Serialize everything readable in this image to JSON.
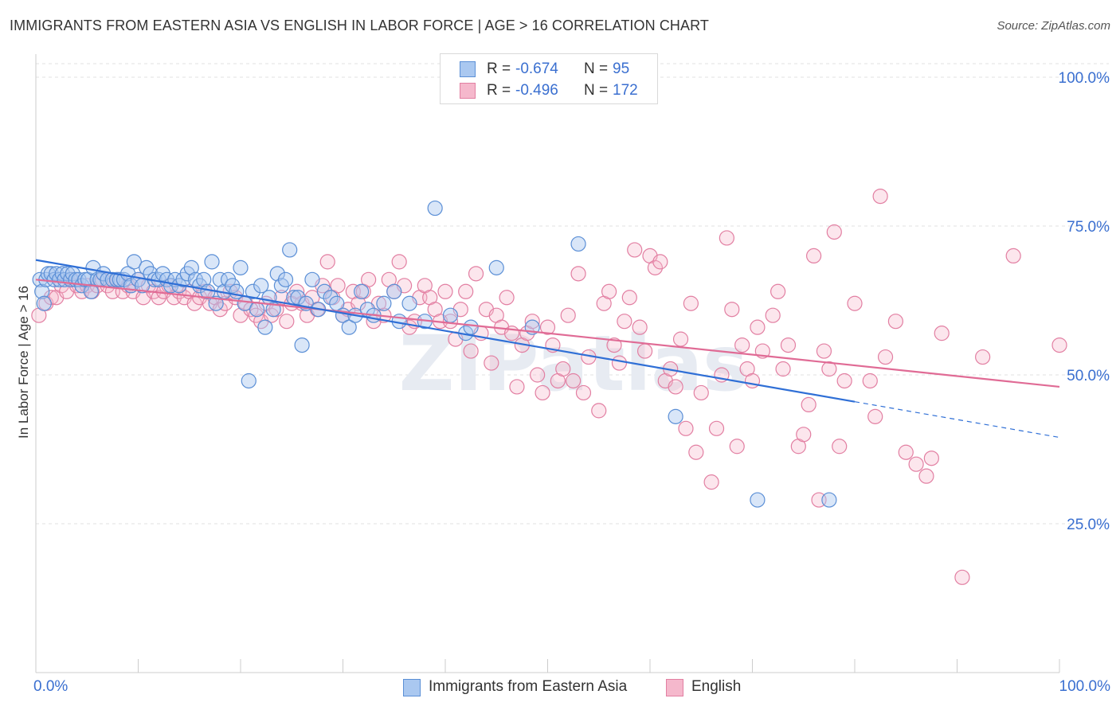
{
  "title": "IMMIGRANTS FROM EASTERN ASIA VS ENGLISH IN LABOR FORCE | AGE > 16 CORRELATION CHART",
  "source": "Source: ZipAtlas.com",
  "watermark": "ZIPatlas",
  "legend_top": {
    "rows": [
      {
        "r_label": "R =",
        "r_value": "-0.674",
        "n_label": "N =",
        "n_value": "95",
        "fill": "#aac8f0",
        "stroke": "#5b8fd6"
      },
      {
        "r_label": "R =",
        "r_value": "-0.496",
        "n_label": "N =",
        "n_value": "172",
        "fill": "#f5b8cc",
        "stroke": "#e27fa2"
      }
    ]
  },
  "legend_bottom": [
    {
      "label": "Immigrants from Eastern Asia",
      "fill": "#aac8f0",
      "stroke": "#5b8fd6"
    },
    {
      "label": "English",
      "fill": "#f5b8cc",
      "stroke": "#e27fa2"
    }
  ],
  "chart_data": {
    "type": "scatter",
    "title": "IMMIGRANTS FROM EASTERN ASIA VS ENGLISH IN LABOR FORCE | AGE > 16 CORRELATION CHART",
    "xlabel": "",
    "ylabel": "In Labor Force | Age > 16",
    "xlim": [
      0,
      100
    ],
    "ylim": [
      0,
      100
    ],
    "x_tick_labels": [
      "0.0%",
      "100.0%"
    ],
    "y_ticks": [
      {
        "value": 100,
        "label": "100.0%"
      },
      {
        "value": 75,
        "label": "75.0%"
      },
      {
        "value": 50,
        "label": "50.0%"
      },
      {
        "value": 25,
        "label": "25.0%"
      }
    ],
    "grid": "horizontal dashed",
    "legend_position": "top-center",
    "colors": {
      "blue": "#5b8fd6",
      "blue_line": "#2f6fd6",
      "pink": "#e27fa2",
      "pink_line": "#e06b95",
      "tick_label": "#3a6fd0"
    },
    "series": [
      {
        "name": "Immigrants from Eastern Asia",
        "color": "#5b8fd6",
        "trend": {
          "x0": 0,
          "y0": 69.3,
          "x1": 80,
          "y1": 45.5,
          "dashed_to_x": 100,
          "dashed_to_y": 39.5
        },
        "points": [
          [
            0.4,
            66
          ],
          [
            0.6,
            64
          ],
          [
            0.8,
            62
          ],
          [
            1.0,
            66
          ],
          [
            1.2,
            67
          ],
          [
            1.5,
            67
          ],
          [
            1.8,
            66
          ],
          [
            2.0,
            67
          ],
          [
            2.3,
            66
          ],
          [
            2.6,
            67
          ],
          [
            2.8,
            66
          ],
          [
            3.1,
            67
          ],
          [
            3.4,
            66
          ],
          [
            3.6,
            67
          ],
          [
            3.9,
            66
          ],
          [
            4.2,
            66
          ],
          [
            4.5,
            65
          ],
          [
            4.8,
            66
          ],
          [
            5.1,
            66
          ],
          [
            5.4,
            64
          ],
          [
            5.6,
            68
          ],
          [
            6.0,
            66
          ],
          [
            6.3,
            66
          ],
          [
            6.6,
            67
          ],
          [
            7.0,
            66
          ],
          [
            7.5,
            66
          ],
          [
            7.9,
            66
          ],
          [
            8.2,
            66
          ],
          [
            8.6,
            66
          ],
          [
            9.0,
            67
          ],
          [
            9.3,
            65
          ],
          [
            9.6,
            69
          ],
          [
            10.0,
            66
          ],
          [
            10.4,
            65
          ],
          [
            10.8,
            68
          ],
          [
            11.2,
            67
          ],
          [
            11.6,
            66
          ],
          [
            12.0,
            66
          ],
          [
            12.4,
            67
          ],
          [
            12.8,
            66
          ],
          [
            13.2,
            65
          ],
          [
            13.6,
            66
          ],
          [
            14.0,
            65
          ],
          [
            14.4,
            66
          ],
          [
            14.8,
            67
          ],
          [
            15.2,
            68
          ],
          [
            15.6,
            66
          ],
          [
            16.0,
            65
          ],
          [
            16.4,
            66
          ],
          [
            16.8,
            64
          ],
          [
            17.2,
            69
          ],
          [
            17.6,
            62
          ],
          [
            18.0,
            66
          ],
          [
            18.4,
            64
          ],
          [
            18.8,
            66
          ],
          [
            19.2,
            65
          ],
          [
            19.6,
            64
          ],
          [
            20.0,
            68
          ],
          [
            20.4,
            62
          ],
          [
            20.8,
            49
          ],
          [
            21.2,
            64
          ],
          [
            21.6,
            61
          ],
          [
            22.0,
            65
          ],
          [
            22.4,
            58
          ],
          [
            22.8,
            63
          ],
          [
            23.2,
            61
          ],
          [
            23.6,
            67
          ],
          [
            24.0,
            65
          ],
          [
            24.4,
            66
          ],
          [
            24.8,
            71
          ],
          [
            25.2,
            63
          ],
          [
            25.6,
            63
          ],
          [
            26.0,
            55
          ],
          [
            26.4,
            62
          ],
          [
            27.0,
            66
          ],
          [
            27.6,
            61
          ],
          [
            28.2,
            64
          ],
          [
            28.8,
            63
          ],
          [
            29.4,
            62
          ],
          [
            30.0,
            60
          ],
          [
            30.6,
            58
          ],
          [
            31.2,
            60
          ],
          [
            31.8,
            64
          ],
          [
            32.4,
            61
          ],
          [
            33.0,
            60
          ],
          [
            34.0,
            62
          ],
          [
            35.0,
            64
          ],
          [
            35.5,
            59
          ],
          [
            36.5,
            62
          ],
          [
            38.0,
            59
          ],
          [
            39.0,
            78
          ],
          [
            40.5,
            60
          ],
          [
            42.0,
            57
          ],
          [
            42.5,
            58
          ],
          [
            45.0,
            68
          ],
          [
            48.5,
            58
          ],
          [
            53.0,
            72
          ],
          [
            62.5,
            43
          ],
          [
            70.5,
            29
          ],
          [
            77.5,
            29
          ]
        ]
      },
      {
        "name": "English",
        "color": "#e27fa2",
        "trend": {
          "x0": 0,
          "y0": 66.0,
          "x1": 100,
          "y1": 48.0
        },
        "points": [
          [
            0.3,
            60
          ],
          [
            1.0,
            62
          ],
          [
            1.5,
            63
          ],
          [
            2.0,
            63
          ],
          [
            2.5,
            65
          ],
          [
            3.0,
            64
          ],
          [
            3.5,
            66
          ],
          [
            4.0,
            65
          ],
          [
            4.5,
            64
          ],
          [
            5.0,
            65
          ],
          [
            5.5,
            64
          ],
          [
            6.0,
            65
          ],
          [
            6.5,
            66
          ],
          [
            7.0,
            65
          ],
          [
            7.5,
            64
          ],
          [
            8.0,
            66
          ],
          [
            8.5,
            64
          ],
          [
            9.0,
            65
          ],
          [
            9.5,
            64
          ],
          [
            10.0,
            66
          ],
          [
            10.5,
            63
          ],
          [
            11.0,
            65
          ],
          [
            11.5,
            64
          ],
          [
            12.0,
            63
          ],
          [
            12.5,
            64
          ],
          [
            13.0,
            65
          ],
          [
            13.5,
            63
          ],
          [
            14.0,
            64
          ],
          [
            14.5,
            63
          ],
          [
            15.0,
            64
          ],
          [
            15.5,
            62
          ],
          [
            16.0,
            63
          ],
          [
            16.5,
            64
          ],
          [
            17.0,
            62
          ],
          [
            17.5,
            63
          ],
          [
            18.0,
            61
          ],
          [
            18.5,
            62
          ],
          [
            19.0,
            64
          ],
          [
            19.5,
            63
          ],
          [
            20.0,
            60
          ],
          [
            20.5,
            62
          ],
          [
            21.0,
            61
          ],
          [
            21.5,
            60
          ],
          [
            22.0,
            59
          ],
          [
            22.5,
            62
          ],
          [
            23.0,
            60
          ],
          [
            23.5,
            61
          ],
          [
            24.0,
            63
          ],
          [
            24.5,
            59
          ],
          [
            25.0,
            62
          ],
          [
            25.5,
            64
          ],
          [
            26.0,
            62
          ],
          [
            26.5,
            60
          ],
          [
            27.0,
            63
          ],
          [
            27.5,
            61
          ],
          [
            28.0,
            65
          ],
          [
            28.5,
            69
          ],
          [
            29.0,
            63
          ],
          [
            29.5,
            65
          ],
          [
            30.0,
            60
          ],
          [
            30.5,
            61
          ],
          [
            31.0,
            64
          ],
          [
            31.5,
            62
          ],
          [
            32.0,
            64
          ],
          [
            32.5,
            66
          ],
          [
            33.0,
            59
          ],
          [
            33.5,
            62
          ],
          [
            34.0,
            60
          ],
          [
            34.5,
            66
          ],
          [
            35.0,
            64
          ],
          [
            35.5,
            69
          ],
          [
            36.0,
            65
          ],
          [
            36.5,
            58
          ],
          [
            37.0,
            59
          ],
          [
            37.5,
            63
          ],
          [
            38.0,
            65
          ],
          [
            38.5,
            63
          ],
          [
            39.0,
            61
          ],
          [
            39.5,
            59
          ],
          [
            40.0,
            64
          ],
          [
            40.5,
            59
          ],
          [
            41.0,
            56
          ],
          [
            41.5,
            61
          ],
          [
            42.0,
            64
          ],
          [
            42.5,
            54
          ],
          [
            43.0,
            67
          ],
          [
            43.5,
            57
          ],
          [
            44.0,
            61
          ],
          [
            44.5,
            52
          ],
          [
            45.0,
            60
          ],
          [
            45.5,
            58
          ],
          [
            46.0,
            63
          ],
          [
            46.5,
            57
          ],
          [
            47.0,
            48
          ],
          [
            47.5,
            55
          ],
          [
            48.0,
            57
          ],
          [
            48.5,
            59
          ],
          [
            49.0,
            50
          ],
          [
            49.5,
            47
          ],
          [
            50.0,
            58
          ],
          [
            50.5,
            55
          ],
          [
            51.0,
            49
          ],
          [
            51.5,
            51
          ],
          [
            52.0,
            60
          ],
          [
            52.5,
            49
          ],
          [
            53.0,
            67
          ],
          [
            53.5,
            47
          ],
          [
            54.0,
            53
          ],
          [
            55.0,
            44
          ],
          [
            55.5,
            62
          ],
          [
            56.0,
            64
          ],
          [
            56.5,
            55
          ],
          [
            57.0,
            52
          ],
          [
            57.5,
            59
          ],
          [
            58.0,
            63
          ],
          [
            58.5,
            71
          ],
          [
            59.0,
            58
          ],
          [
            59.5,
            54
          ],
          [
            60.0,
            70
          ],
          [
            60.5,
            68
          ],
          [
            61.0,
            69
          ],
          [
            61.5,
            49
          ],
          [
            62.0,
            51
          ],
          [
            62.5,
            48
          ],
          [
            63.0,
            56
          ],
          [
            63.5,
            41
          ],
          [
            64.0,
            62
          ],
          [
            64.5,
            37
          ],
          [
            65.0,
            47
          ],
          [
            66.0,
            32
          ],
          [
            66.5,
            41
          ],
          [
            67.0,
            50
          ],
          [
            67.5,
            73
          ],
          [
            68.0,
            61
          ],
          [
            68.5,
            38
          ],
          [
            69.0,
            55
          ],
          [
            69.5,
            51
          ],
          [
            70.0,
            49
          ],
          [
            70.5,
            58
          ],
          [
            71.0,
            54
          ],
          [
            72.0,
            60
          ],
          [
            72.5,
            64
          ],
          [
            73.0,
            51
          ],
          [
            73.5,
            55
          ],
          [
            74.5,
            38
          ],
          [
            75.0,
            40
          ],
          [
            75.5,
            45
          ],
          [
            76.0,
            70
          ],
          [
            76.5,
            29
          ],
          [
            77.0,
            54
          ],
          [
            77.5,
            51
          ],
          [
            78.0,
            74
          ],
          [
            78.5,
            38
          ],
          [
            79.0,
            49
          ],
          [
            80.0,
            62
          ],
          [
            81.5,
            49
          ],
          [
            82.0,
            43
          ],
          [
            82.5,
            80
          ],
          [
            83.0,
            53
          ],
          [
            84.0,
            59
          ],
          [
            85.0,
            37
          ],
          [
            86.0,
            35
          ],
          [
            87.0,
            33
          ],
          [
            87.5,
            36
          ],
          [
            88.5,
            57
          ],
          [
            90.5,
            16
          ],
          [
            92.5,
            53
          ],
          [
            95.5,
            70
          ],
          [
            100.0,
            55
          ]
        ]
      }
    ]
  }
}
